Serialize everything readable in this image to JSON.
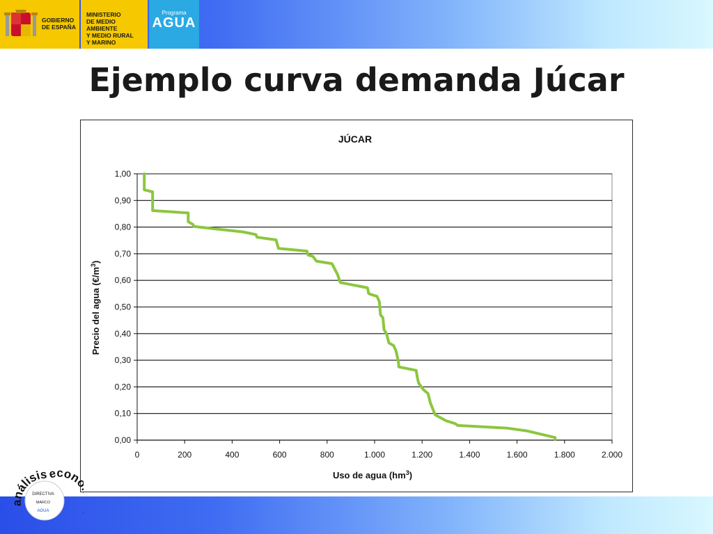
{
  "header": {
    "gobierno": "GOBIERNO\nDE ESPAÑA",
    "ministerio": "MINISTERIO\nDE MEDIO AMBIENTE\nY MEDIO RURAL\nY MARINO",
    "programa_label": "Programa",
    "programa_name": "AGUA"
  },
  "slide": {
    "title": "Ejemplo curva demanda Júcar"
  },
  "chart_data": {
    "type": "line",
    "title": "JÚCAR",
    "xlabel": "Uso de agua (hm",
    "xlabel_sup": "3",
    "xlabel_close": ")",
    "ylabel": "Precio del agua (€/m",
    "ylabel_sup": "3",
    "ylabel_close": ")",
    "xlim": [
      0,
      2000
    ],
    "ylim": [
      0,
      1.0
    ],
    "x_ticks": [
      0,
      200,
      400,
      600,
      800,
      1000,
      1200,
      1400,
      1600,
      1800,
      2000
    ],
    "x_tick_labels": [
      "0",
      "200",
      "400",
      "600",
      "800",
      "1.000",
      "1.200",
      "1.400",
      "1.600",
      "1.800",
      "2.000"
    ],
    "y_ticks": [
      0,
      0.1,
      0.2,
      0.3,
      0.4,
      0.5,
      0.6,
      0.7,
      0.8,
      0.9,
      1.0
    ],
    "y_tick_labels": [
      "0,00",
      "0,10",
      "0,20",
      "0,30",
      "0,40",
      "0,50",
      "0,60",
      "0,70",
      "0,80",
      "0,90",
      "1,00"
    ],
    "grid": "horizontal",
    "line_color": "#8cc63f",
    "series": [
      {
        "points": [
          [
            30,
            1.0
          ],
          [
            30,
            0.94
          ],
          [
            65,
            0.932
          ],
          [
            65,
            0.862
          ],
          [
            215,
            0.853
          ],
          [
            215,
            0.82
          ],
          [
            235,
            0.81
          ],
          [
            240,
            0.802
          ],
          [
            445,
            0.782
          ],
          [
            500,
            0.772
          ],
          [
            505,
            0.762
          ],
          [
            585,
            0.752
          ],
          [
            595,
            0.72
          ],
          [
            715,
            0.71
          ],
          [
            720,
            0.695
          ],
          [
            740,
            0.69
          ],
          [
            755,
            0.672
          ],
          [
            820,
            0.663
          ],
          [
            825,
            0.655
          ],
          [
            845,
            0.62
          ],
          [
            855,
            0.592
          ],
          [
            970,
            0.572
          ],
          [
            975,
            0.55
          ],
          [
            1010,
            0.54
          ],
          [
            1020,
            0.52
          ],
          [
            1025,
            0.47
          ],
          [
            1035,
            0.46
          ],
          [
            1040,
            0.415
          ],
          [
            1050,
            0.4
          ],
          [
            1060,
            0.365
          ],
          [
            1080,
            0.355
          ],
          [
            1090,
            0.335
          ],
          [
            1100,
            0.296
          ],
          [
            1102,
            0.275
          ],
          [
            1175,
            0.262
          ],
          [
            1180,
            0.235
          ],
          [
            1185,
            0.215
          ],
          [
            1205,
            0.19
          ],
          [
            1225,
            0.175
          ],
          [
            1235,
            0.14
          ],
          [
            1255,
            0.095
          ],
          [
            1300,
            0.073
          ],
          [
            1340,
            0.062
          ],
          [
            1350,
            0.055
          ],
          [
            1560,
            0.045
          ],
          [
            1640,
            0.035
          ],
          [
            1720,
            0.018
          ],
          [
            1760,
            0.01
          ],
          [
            1760,
            0.004
          ]
        ]
      }
    ]
  },
  "badge": {
    "top_word": "análisis",
    "side_word": "económico",
    "line1": "DIRECTIVA",
    "line2": "MARCO",
    "line3": "AGUA"
  }
}
